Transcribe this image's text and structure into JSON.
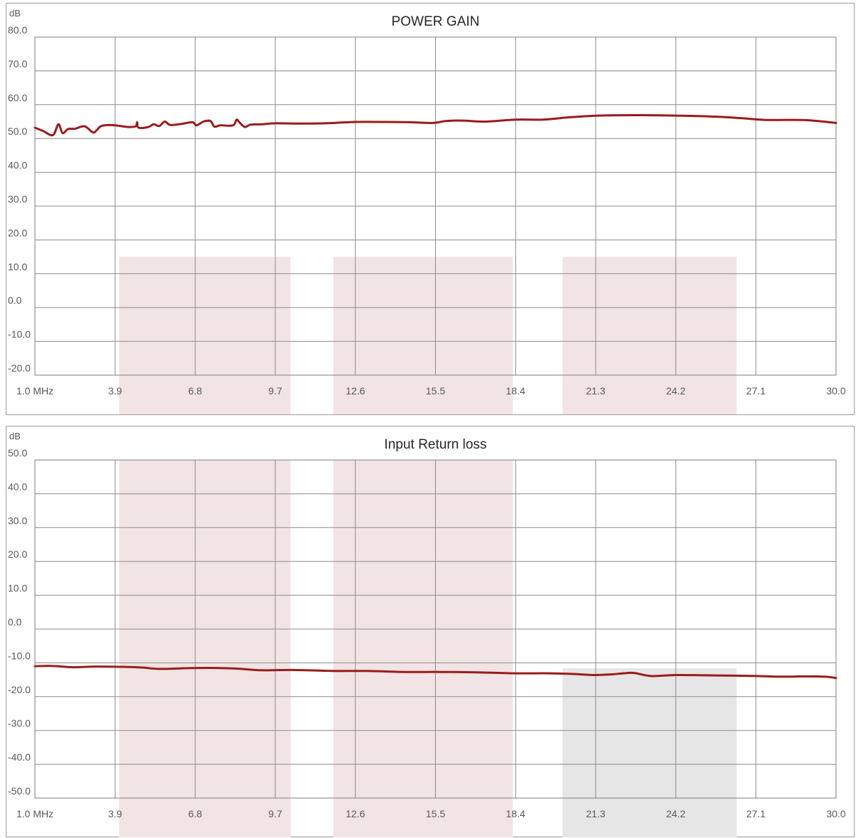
{
  "chart_data": [
    {
      "type": "line",
      "title": "POWER GAIN",
      "ylabel": "dB",
      "xlabel": "",
      "ylim": [
        -20,
        80
      ],
      "y_ticks": [
        "80.0",
        "70.0",
        "60.0",
        "50.0",
        "40.0",
        "30.0",
        "20.0",
        "10.0",
        "0.0",
        "-10.0",
        "-20.0"
      ],
      "x_ticks": [
        "1.0 MHz",
        "3.9",
        "6.8",
        "9.7",
        "12.6",
        "15.5",
        "18.4",
        "21.3",
        "24.2",
        "27.1",
        "30.0"
      ],
      "xlim": [
        1.0,
        30.0
      ],
      "grid": true,
      "line_color": "#9b1c1c",
      "highlight_color": "#f2e4e4",
      "highlight_bands": [
        {
          "x": [
            4.05,
            10.25
          ],
          "y": [
            -20,
            15
          ]
        },
        {
          "x": [
            11.8,
            18.3
          ],
          "y": [
            -20,
            15
          ]
        },
        {
          "x": [
            20.1,
            26.4
          ],
          "y": [
            -20,
            15
          ]
        }
      ],
      "series": [
        {
          "x": [
            1.0,
            1.3,
            1.65,
            1.85,
            2.0,
            2.2,
            2.45,
            2.8,
            3.1,
            3.25,
            3.4,
            3.7,
            4.0,
            4.4,
            4.65,
            4.7,
            4.75,
            5.1,
            5.3,
            5.5,
            5.7,
            5.9,
            6.3,
            6.7,
            6.85,
            7.1,
            7.35,
            7.5,
            7.7,
            8.0,
            8.2,
            8.3,
            8.4,
            8.6,
            8.8,
            9.2,
            9.7,
            10.5,
            11.5,
            12.6,
            13.7,
            14.6,
            15.4,
            15.9,
            16.5,
            17.3,
            18.4,
            19.4,
            20.4,
            21.5,
            23.0,
            24.6,
            25.8,
            26.6,
            27.4,
            28.2,
            29.0,
            30.0
          ],
          "values": [
            53.2,
            52.2,
            51.0,
            54.2,
            51.6,
            52.8,
            52.9,
            53.6,
            51.8,
            52.6,
            53.7,
            54.0,
            53.8,
            53.4,
            53.6,
            54.8,
            53.2,
            53.4,
            54.2,
            53.7,
            55.0,
            54.0,
            54.3,
            54.8,
            53.9,
            55.0,
            55.2,
            53.5,
            53.9,
            53.8,
            54.0,
            55.6,
            54.8,
            53.4,
            54.1,
            54.2,
            54.5,
            54.4,
            54.5,
            54.9,
            54.9,
            54.8,
            54.6,
            55.2,
            55.3,
            55.0,
            55.6,
            55.6,
            56.3,
            56.8,
            56.9,
            56.7,
            56.4,
            56.0,
            55.5,
            55.5,
            55.4,
            54.6
          ]
        }
      ]
    },
    {
      "type": "line",
      "title": "Input Return loss",
      "ylabel": "dB",
      "xlabel": "",
      "ylim": [
        -50,
        50
      ],
      "y_ticks": [
        "50.0",
        "40.0",
        "30.0",
        "20.0",
        "10.0",
        "0.0",
        "-10.0",
        "-20.0",
        "-30.0",
        "-40.0",
        "-50.0"
      ],
      "x_ticks": [
        "1.0 MHz",
        "3.9",
        "6.8",
        "9.7",
        "12.6",
        "15.5",
        "18.4",
        "21.3",
        "24.2",
        "27.1",
        "30.0"
      ],
      "xlim": [
        1.0,
        30.0
      ],
      "grid": true,
      "line_color": "#9b1c1c",
      "highlight_color": "#f2e4e4",
      "gray_color": "#e6e6e6",
      "highlight_bands": [
        {
          "x": [
            4.05,
            10.25
          ],
          "y": [
            1.2,
            50
          ]
        },
        {
          "x": [
            11.8,
            18.3
          ],
          "y": [
            1.2,
            50
          ]
        },
        {
          "x": [
            4.05,
            10.25
          ],
          "y": [
            -50,
            -12.2
          ]
        }
      ],
      "gray_bands": [
        {
          "x": [
            20.1,
            26.4
          ],
          "y": [
            -50,
            -11.6
          ]
        }
      ],
      "series": [
        {
          "x": [
            1.0,
            1.6,
            2.4,
            3.2,
            4.3,
            4.9,
            5.5,
            6.4,
            7.3,
            8.3,
            9.2,
            10.3,
            11.8,
            13.0,
            14.4,
            15.7,
            17.0,
            18.4,
            19.6,
            20.5,
            21.2,
            21.9,
            22.3,
            22.7,
            23.3,
            24.2,
            25.3,
            26.4,
            27.1,
            28.0,
            28.9,
            29.6,
            30.0
          ],
          "values": [
            -11.0,
            -10.9,
            -11.3,
            -11.1,
            -11.2,
            -11.4,
            -11.8,
            -11.6,
            -11.5,
            -11.7,
            -12.2,
            -12.1,
            -12.4,
            -12.4,
            -12.7,
            -12.7,
            -12.8,
            -13.1,
            -13.1,
            -13.3,
            -13.6,
            -13.4,
            -13.1,
            -13.0,
            -13.9,
            -13.6,
            -13.7,
            -13.8,
            -13.9,
            -14.1,
            -14.0,
            -14.1,
            -14.5
          ]
        }
      ]
    }
  ]
}
